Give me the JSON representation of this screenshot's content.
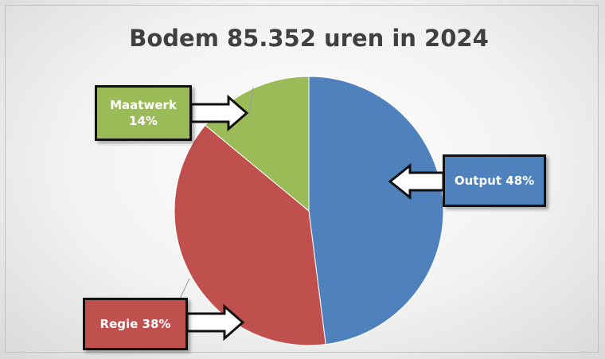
{
  "chart_data": {
    "type": "pie",
    "title": "Bodem 85.352 uren in 2024",
    "values": [
      48,
      38,
      14
    ],
    "value_labels": [
      "Output 48%",
      "Regie 38%",
      "Maatwerk 14%"
    ],
    "colors": [
      "#4f81bd",
      "#c0504d",
      "#9bbb59"
    ]
  }
}
